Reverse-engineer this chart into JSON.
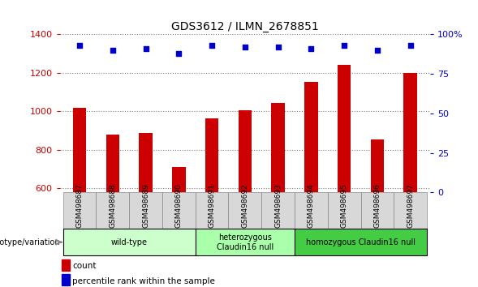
{
  "title": "GDS3612 / ILMN_2678851",
  "samples": [
    "GSM498687",
    "GSM498688",
    "GSM498689",
    "GSM498690",
    "GSM498691",
    "GSM498692",
    "GSM498693",
    "GSM498694",
    "GSM498695",
    "GSM498696",
    "GSM498697"
  ],
  "counts": [
    1020,
    880,
    890,
    710,
    965,
    1005,
    1045,
    1155,
    1240,
    855,
    1200
  ],
  "percentile_ranks": [
    93,
    90,
    91,
    88,
    93,
    92,
    92,
    91,
    93,
    90,
    93
  ],
  "ylim_left": [
    580,
    1400
  ],
  "ylim_right": [
    0,
    100
  ],
  "yticks_left": [
    600,
    800,
    1000,
    1200,
    1400
  ],
  "yticks_right": [
    0,
    25,
    50,
    75,
    100
  ],
  "bar_color": "#cc0000",
  "dot_color": "#0000cc",
  "bar_width": 0.4,
  "groups": [
    {
      "label": "wild-type",
      "indices": [
        0,
        1,
        2,
        3
      ],
      "color": "#ccffcc"
    },
    {
      "label": "heterozygous\nClaudin16 null",
      "indices": [
        4,
        5,
        6
      ],
      "color": "#aaffaa"
    },
    {
      "label": "homozygous Claudin16 null",
      "indices": [
        7,
        8,
        9,
        10
      ],
      "color": "#44cc44"
    }
  ],
  "genotype_label": "genotype/variation",
  "legend_count_label": "count",
  "legend_pct_label": "percentile rank within the sample",
  "plot_bg": "#ffffff"
}
